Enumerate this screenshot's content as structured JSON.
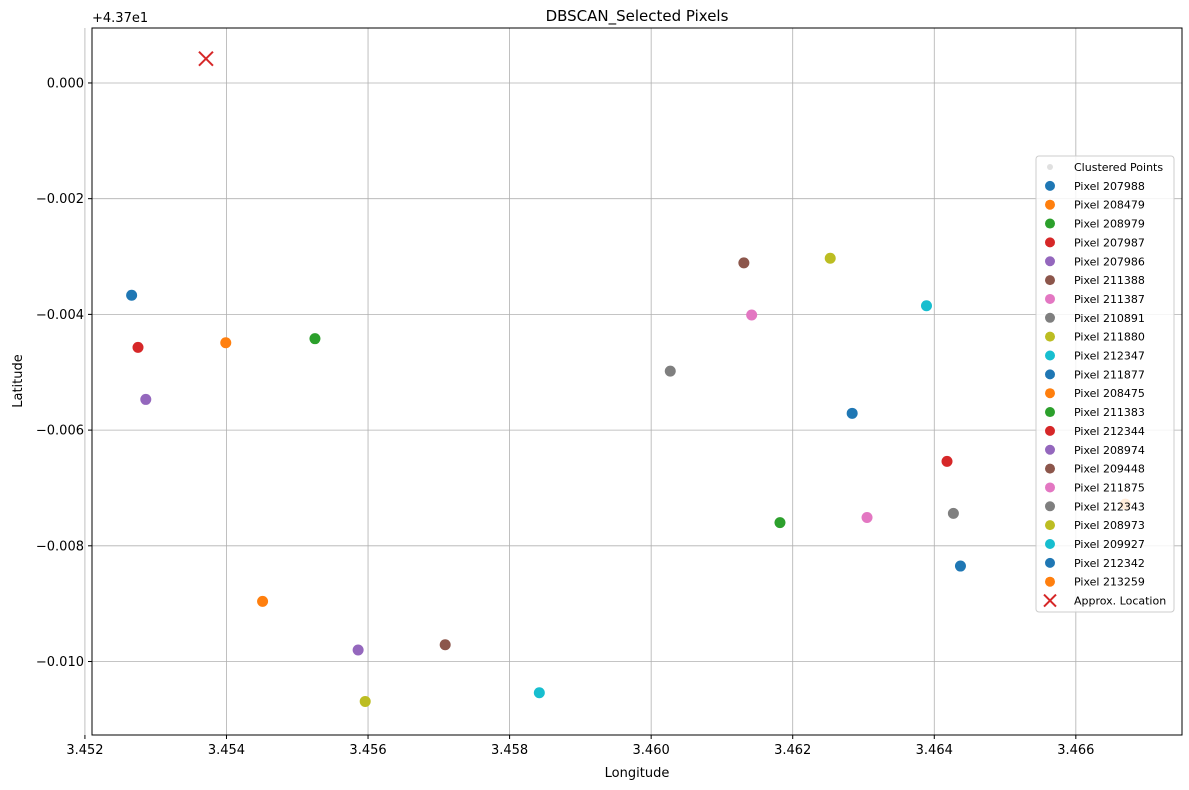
{
  "chart_data": {
    "type": "scatter",
    "title": "DBSCAN_Selected Pixels",
    "xlabel": "Longitude",
    "ylabel": "Latitude",
    "y_offset_label": "+4.37e1",
    "xlim": [
      3.4521,
      3.4675
    ],
    "ylim": [
      -0.01127,
      0.00095
    ],
    "x_ticks": [
      3.452,
      3.454,
      3.456,
      3.458,
      3.46,
      3.462,
      3.464,
      3.466
    ],
    "x_tick_labels": [
      "3.452",
      "3.454",
      "3.456",
      "3.458",
      "3.460",
      "3.462",
      "3.464",
      "3.466"
    ],
    "y_ticks": [
      0.0,
      -0.002,
      -0.004,
      -0.006,
      -0.008,
      -0.01
    ],
    "y_tick_labels": [
      "0.000",
      "−0.002",
      "−0.004",
      "−0.006",
      "−0.008",
      "−0.010"
    ],
    "grid": true,
    "legend_position": "center-right",
    "clustered_label": "Clustered Points",
    "clustered_color": "#cccccc",
    "series": [
      {
        "name": "Pixel 207988",
        "color": "#1f77b4",
        "x": 3.45266,
        "y": -0.00367
      },
      {
        "name": "Pixel 208479",
        "color": "#ff7f0e",
        "x": 3.45399,
        "y": -0.00449
      },
      {
        "name": "Pixel 208979",
        "color": "#2ca02c",
        "x": 3.45525,
        "y": -0.00442
      },
      {
        "name": "Pixel 207987",
        "color": "#d62728",
        "x": 3.45275,
        "y": -0.00457
      },
      {
        "name": "Pixel 207986",
        "color": "#9467bd",
        "x": 3.45286,
        "y": -0.00547
      },
      {
        "name": "Pixel 211388",
        "color": "#8c564b",
        "x": 3.46131,
        "y": -0.00311
      },
      {
        "name": "Pixel 211387",
        "color": "#e377c2",
        "x": 3.46142,
        "y": -0.00401
      },
      {
        "name": "Pixel 210891",
        "color": "#7f7f7f",
        "x": 3.46027,
        "y": -0.00498
      },
      {
        "name": "Pixel 211880",
        "color": "#bcbd22",
        "x": 3.46253,
        "y": -0.00303
      },
      {
        "name": "Pixel 212347",
        "color": "#17becf",
        "x": 3.46389,
        "y": -0.00385
      },
      {
        "name": "Pixel 211877",
        "color": "#1f77b4",
        "x": 3.46284,
        "y": -0.00571
      },
      {
        "name": "Pixel 208475",
        "color": "#ff7f0e",
        "x": 3.4667,
        "y": -0.00728
      },
      {
        "name": "Pixel 211383",
        "color": "#2ca02c",
        "x": 3.46182,
        "y": -0.0076
      },
      {
        "name": "Pixel 212344",
        "color": "#d62728",
        "x": 3.46418,
        "y": -0.00654
      },
      {
        "name": "Pixel 208974",
        "color": "#9467bd",
        "x": 3.45586,
        "y": -0.0098
      },
      {
        "name": "Pixel 209448",
        "color": "#8c564b",
        "x": 3.45709,
        "y": -0.00971
      },
      {
        "name": "Pixel 211875",
        "color": "#e377c2",
        "x": 3.46305,
        "y": -0.00751
      },
      {
        "name": "Pixel 212343",
        "color": "#7f7f7f",
        "x": 3.46427,
        "y": -0.00744
      },
      {
        "name": "Pixel 208973",
        "color": "#bcbd22",
        "x": 3.45596,
        "y": -0.01069
      },
      {
        "name": "Pixel 209927",
        "color": "#17becf",
        "x": 3.45842,
        "y": -0.01054
      },
      {
        "name": "Pixel 212342",
        "color": "#1f77b4",
        "x": 3.46437,
        "y": -0.00835
      },
      {
        "name": "Pixel 213259",
        "color": "#ff7f0e",
        "x": 3.45451,
        "y": -0.00896
      }
    ],
    "marker": {
      "name": "Approx. Location",
      "color": "#d62728",
      "x": 3.45371,
      "y": 0.00042
    }
  }
}
